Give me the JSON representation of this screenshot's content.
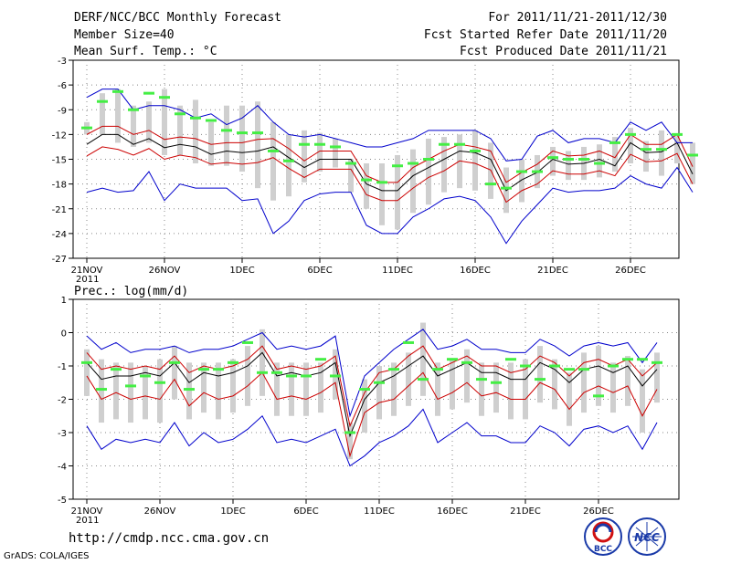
{
  "header": {
    "title": "DERF/NCC/BCC Monthly Forecast",
    "member_size": "Member Size=40",
    "variable_top": "Mean Surf. Temp.: °C",
    "period": "For 2011/11/21-2011/12/30",
    "started": "Fcst Started Refer Date 2011/11/20",
    "produced": "Fcst Produced Date 2011/11/21"
  },
  "footer": {
    "url": "http://cmdp.ncc.cma.gov.cn",
    "credit": "GrADS: COLA/IGES",
    "logo_left": "BCC",
    "logo_right": "NCC"
  },
  "colors": {
    "ens": "#000000",
    "spread": "#cc0000",
    "extreme": "#0000cc",
    "box": "#cfcfcf",
    "obs": "#44ee44"
  },
  "chart_data": [
    {
      "type": "line",
      "title": "Mean Surf. Temp.: °C",
      "x_tick_labels": [
        "21NOV",
        "26NOV",
        "1DEC",
        "6DEC",
        "11DEC",
        "16DEC",
        "21DEC",
        "26DEC"
      ],
      "x_tick_days": [
        1,
        6,
        11,
        16,
        21,
        26,
        31,
        36
      ],
      "x_year_label": "2011",
      "xlim": [
        1,
        40
      ],
      "ylim": [
        -27,
        -3
      ],
      "y_ticks": [
        -3,
        -6,
        -9,
        -12,
        -15,
        -18,
        -21,
        -24,
        -27
      ],
      "series": [
        {
          "name": "ensemble mean",
          "values": [
            -13.2,
            -12.0,
            -12.0,
            -13.2,
            -12.5,
            -13.6,
            -13.2,
            -13.5,
            -14.4,
            -14.0,
            -14.2,
            -14.0,
            -13.5,
            -14.8,
            -16.0,
            -15.0,
            -15.0,
            -15.0,
            -18.0,
            -18.8,
            -18.8,
            -17.0,
            -16.0,
            -15.0,
            -14.0,
            -14.2,
            -15.0,
            -18.8,
            -17.5,
            -16.6,
            -15.0,
            -15.6,
            -15.5,
            -15.0,
            -15.8,
            -13.0,
            -14.2,
            -14.1,
            -13.0,
            -16.8
          ]
        },
        {
          "name": "spread upper",
          "values": [
            -12.0,
            -11.0,
            -11.0,
            -12.0,
            -11.5,
            -12.6,
            -12.3,
            -12.5,
            -13.2,
            -13.0,
            -13.0,
            -12.6,
            -12.5,
            -13.7,
            -15.2,
            -14.0,
            -14.0,
            -14.0,
            -17.0,
            -17.8,
            -17.8,
            -16.0,
            -15.0,
            -14.0,
            -13.2,
            -13.5,
            -14.0,
            -17.8,
            -16.6,
            -15.6,
            -14.0,
            -14.6,
            -14.5,
            -14.0,
            -14.8,
            -12.0,
            -13.2,
            -13.2,
            -12.0,
            -15.9
          ]
        },
        {
          "name": "spread lower",
          "values": [
            -14.6,
            -13.5,
            -13.8,
            -14.5,
            -13.7,
            -15.0,
            -14.5,
            -14.8,
            -15.6,
            -15.4,
            -15.6,
            -15.4,
            -14.8,
            -16.1,
            -17.2,
            -16.2,
            -16.2,
            -16.2,
            -19.3,
            -20.0,
            -20.0,
            -18.5,
            -17.2,
            -16.4,
            -15.2,
            -15.5,
            -16.3,
            -20.2,
            -18.8,
            -18.0,
            -16.4,
            -16.8,
            -16.8,
            -16.4,
            -17.0,
            -14.4,
            -15.3,
            -15.2,
            -14.3,
            -18.0
          ]
        },
        {
          "name": "ensemble max",
          "values": [
            -7.5,
            -6.5,
            -6.5,
            -9.0,
            -8.5,
            -8.5,
            -9.0,
            -10.0,
            -9.5,
            -10.8,
            -10.0,
            -8.5,
            -10.5,
            -12.0,
            -12.3,
            -12.0,
            -12.5,
            -13.0,
            -13.5,
            -13.5,
            -13.0,
            -12.5,
            -11.5,
            -11.5,
            -11.5,
            -11.5,
            -12.5,
            -15.2,
            -15.0,
            -12.2,
            -11.5,
            -13.0,
            -12.5,
            -12.5,
            -13.0,
            -10.5,
            -11.5,
            -10.5,
            -13.0,
            -13.0
          ]
        },
        {
          "name": "ensemble min",
          "values": [
            -19.0,
            -18.5,
            -19.0,
            -18.8,
            -16.5,
            -20.0,
            -18.0,
            -18.5,
            -18.5,
            -18.5,
            -20.0,
            -19.8,
            -24.0,
            -22.5,
            -20.0,
            -19.2,
            -19.0,
            -19.0,
            -23.0,
            -24.0,
            -24.0,
            -22.0,
            -21.0,
            -19.8,
            -19.5,
            -20.0,
            -22.0,
            -25.2,
            -22.5,
            -20.5,
            -18.5,
            -19.0,
            -18.8,
            -18.8,
            -18.5,
            -17.0,
            -18.0,
            -18.5,
            -16.0,
            -19.0
          ]
        },
        {
          "name": "observed/analysis",
          "values": [
            -11.2,
            -8.0,
            -6.8,
            -9.0,
            -7.0,
            -7.5,
            -9.5,
            -10.0,
            -10.3,
            -11.5,
            -11.8,
            -11.8,
            -14.0,
            -15.2,
            -13.2,
            -13.2,
            -13.5,
            -15.5,
            -17.5,
            -17.8,
            -15.8,
            -15.5,
            -15.0,
            -13.2,
            -13.2,
            -14.0,
            -18.0,
            -18.5,
            -16.5,
            -16.5,
            -14.8,
            -15.0,
            -15.0,
            -15.5,
            -13.0,
            -12.0,
            -13.8,
            -13.8,
            -12.0,
            -14.5
          ]
        }
      ],
      "box_range": {
        "max": [
          -10.5,
          -7.0,
          -6.5,
          -8.5,
          -8.0,
          -6.5,
          -8.5,
          -7.8,
          -10.5,
          -8.5,
          -8.5,
          -8.0,
          -10.5,
          -12.0,
          -11.5,
          -11.8,
          -12.5,
          -15.0,
          -15.5,
          -15.5,
          -14.5,
          -13.8,
          -12.5,
          -12.3,
          -12.0,
          -11.5,
          -13.0,
          -16.0,
          -15.0,
          -14.5,
          -13.5,
          -14.0,
          -13.5,
          -13.2,
          -12.3,
          -11.2,
          -12.8,
          -11.5,
          -12.2,
          -13.0
        ],
        "min": [
          -12.0,
          -12.0,
          -13.0,
          -13.5,
          -13.0,
          -14.5,
          -14.5,
          -15.5,
          -15.8,
          -15.8,
          -16.5,
          -18.5,
          -20.0,
          -19.5,
          -17.8,
          -16.5,
          -16.0,
          -19.0,
          -21.0,
          -23.0,
          -23.5,
          -21.5,
          -20.5,
          -19.0,
          -18.5,
          -18.8,
          -19.8,
          -21.5,
          -20.2,
          -18.5,
          -17.0,
          -17.5,
          -17.5,
          -17.2,
          -16.5,
          -15.5,
          -16.5,
          -17.0,
          -15.5,
          -18.0
        ]
      }
    },
    {
      "type": "line",
      "title": "Prec.: log(mm/d)",
      "x_tick_labels": [
        "21NOV",
        "26NOV",
        "1DEC",
        "6DEC",
        "11DEC",
        "16DEC",
        "21DEC",
        "26DEC"
      ],
      "x_tick_days": [
        1,
        6,
        11,
        16,
        21,
        26,
        31,
        36
      ],
      "x_year_label": "2011",
      "xlim": [
        1,
        40
      ],
      "ylim": [
        -5,
        1
      ],
      "y_ticks": [
        1,
        0,
        -1,
        -2,
        -3,
        -4,
        -5
      ],
      "series": [
        {
          "name": "ensemble mean",
          "values": [
            -0.9,
            -1.4,
            -1.3,
            -1.3,
            -1.2,
            -1.3,
            -0.9,
            -1.5,
            -1.2,
            -1.3,
            -1.2,
            -1.0,
            -0.6,
            -1.3,
            -1.2,
            -1.3,
            -1.2,
            -0.9,
            -3.1,
            -2.0,
            -1.5,
            -1.3,
            -1.0,
            -0.7,
            -1.3,
            -1.1,
            -0.9,
            -1.2,
            -1.2,
            -1.4,
            -1.4,
            -0.9,
            -1.1,
            -1.5,
            -1.1,
            -1.0,
            -1.2,
            -1.0,
            -1.6,
            -1.1
          ]
        },
        {
          "name": "spread upper",
          "values": [
            -0.6,
            -1.1,
            -1.0,
            -1.1,
            -1.0,
            -1.1,
            -0.7,
            -1.2,
            -1.0,
            -1.1,
            -1.0,
            -0.8,
            -0.4,
            -1.1,
            -1.0,
            -1.1,
            -1.0,
            -0.7,
            -2.8,
            -1.8,
            -1.2,
            -1.1,
            -0.7,
            -0.4,
            -1.1,
            -0.9,
            -0.7,
            -1.0,
            -1.0,
            -1.2,
            -1.1,
            -0.7,
            -0.9,
            -1.3,
            -0.9,
            -0.8,
            -1.0,
            -0.8,
            -1.3,
            -0.9
          ]
        },
        {
          "name": "spread lower",
          "values": [
            -1.3,
            -2.0,
            -1.8,
            -2.0,
            -1.9,
            -2.0,
            -1.4,
            -2.2,
            -1.8,
            -2.0,
            -1.9,
            -1.6,
            -1.2,
            -2.0,
            -1.9,
            -2.0,
            -1.8,
            -1.5,
            -3.7,
            -2.4,
            -2.1,
            -2.0,
            -1.6,
            -1.2,
            -2.0,
            -1.8,
            -1.5,
            -1.9,
            -1.8,
            -2.0,
            -2.0,
            -1.5,
            -1.7,
            -2.3,
            -1.8,
            -1.6,
            -1.8,
            -1.6,
            -2.5,
            -1.7
          ]
        },
        {
          "name": "ensemble max",
          "values": [
            -0.1,
            -0.5,
            -0.3,
            -0.6,
            -0.5,
            -0.5,
            -0.4,
            -0.6,
            -0.5,
            -0.5,
            -0.4,
            -0.2,
            0.0,
            -0.5,
            -0.4,
            -0.5,
            -0.4,
            -0.1,
            -2.5,
            -1.3,
            -0.9,
            -0.5,
            -0.2,
            0.1,
            -0.5,
            -0.4,
            -0.2,
            -0.5,
            -0.5,
            -0.6,
            -0.6,
            -0.2,
            -0.4,
            -0.7,
            -0.4,
            -0.3,
            -0.4,
            -0.3,
            -0.9,
            -0.3
          ]
        },
        {
          "name": "ensemble min",
          "values": [
            -2.8,
            -3.5,
            -3.2,
            -3.3,
            -3.2,
            -3.3,
            -2.7,
            -3.4,
            -3.0,
            -3.3,
            -3.2,
            -2.9,
            -2.5,
            -3.3,
            -3.2,
            -3.3,
            -3.1,
            -2.9,
            -4.0,
            -3.7,
            -3.3,
            -3.1,
            -2.8,
            -2.3,
            -3.3,
            -3.0,
            -2.7,
            -3.1,
            -3.1,
            -3.3,
            -3.3,
            -2.8,
            -3.0,
            -3.4,
            -2.9,
            -2.8,
            -3.0,
            -2.8,
            -3.5,
            -2.7
          ]
        },
        {
          "name": "observed/analysis",
          "values": [
            -0.9,
            -1.7,
            -1.1,
            -1.6,
            -1.3,
            -1.5,
            -0.9,
            -1.7,
            -1.1,
            -1.1,
            -0.9,
            -0.3,
            -1.2,
            -1.2,
            -1.3,
            -1.3,
            -0.8,
            -1.3,
            -3.0,
            -1.7,
            -1.5,
            -1.1,
            -0.3,
            -1.4,
            -1.1,
            -0.8,
            -0.9,
            -1.4,
            -1.5,
            -0.8,
            -1.0,
            -1.4,
            -1.0,
            -1.1,
            -1.1,
            -1.9,
            -1.0,
            -0.8,
            -0.8,
            -0.9
          ]
        }
      ],
      "box_range": {
        "max": [
          -0.5,
          -0.8,
          -0.9,
          -0.9,
          -1.0,
          -0.8,
          -0.4,
          -0.9,
          -0.9,
          -0.9,
          -0.8,
          -0.4,
          0.1,
          -0.9,
          -0.9,
          -0.9,
          -0.9,
          -0.5,
          -2.7,
          -1.4,
          -1.0,
          -0.9,
          -0.6,
          0.3,
          -0.9,
          -0.8,
          -0.5,
          -0.9,
          -0.9,
          -0.9,
          -0.8,
          -0.4,
          -0.8,
          -1.2,
          -0.6,
          -0.4,
          -0.9,
          -0.7,
          -1.1,
          -0.6
        ],
        "min": [
          -1.9,
          -2.7,
          -2.6,
          -2.7,
          -2.6,
          -2.7,
          -2.0,
          -2.6,
          -2.4,
          -2.6,
          -2.4,
          -2.2,
          -1.9,
          -2.5,
          -2.5,
          -2.5,
          -2.4,
          -2.0,
          -3.8,
          -3.0,
          -2.6,
          -2.5,
          -2.2,
          -1.9,
          -2.5,
          -2.3,
          -2.1,
          -2.5,
          -2.4,
          -2.6,
          -2.6,
          -2.1,
          -2.3,
          -2.8,
          -2.4,
          -2.2,
          -2.4,
          -2.2,
          -3.0,
          -2.1
        ]
      }
    }
  ]
}
